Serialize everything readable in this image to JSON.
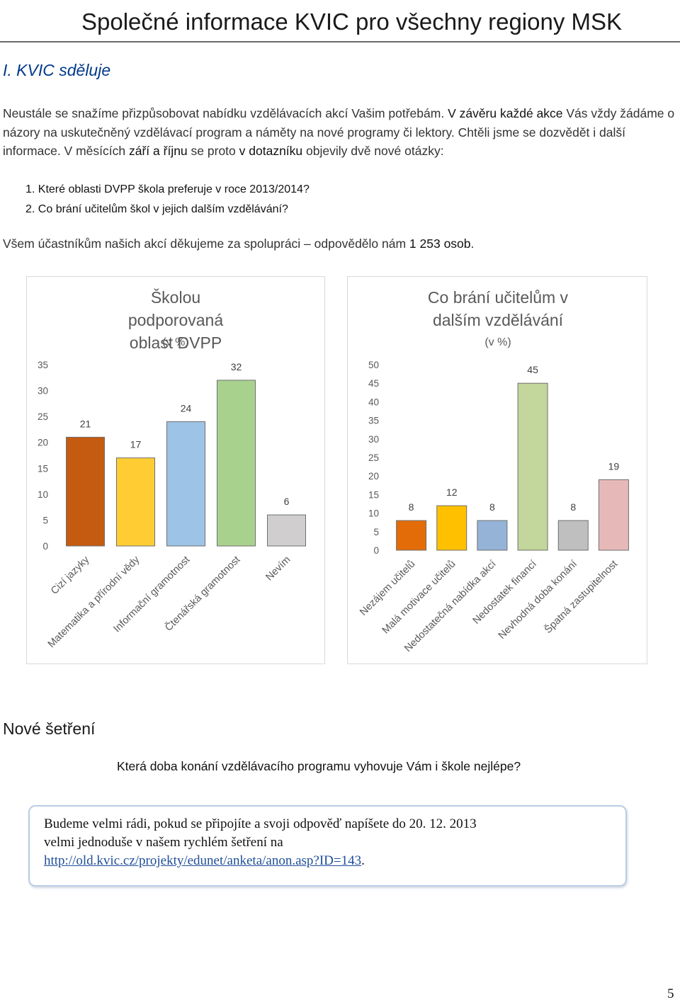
{
  "header": {
    "title": "Společné informace KVIC pro všechny regiony MSK"
  },
  "section": {
    "title": "I. KVIC sděluje"
  },
  "intro": {
    "p1": "Neustále se snažíme přizpůsobovat nabídku vzdělávacích akcí Vašim potřebám. ",
    "p1b": "V závěru každé akce",
    "p2": " Vás vždy žádáme o názory na uskutečněný vzdělávací program a náměty na nové programy či lektory. Chtěli jsme se dozvědět i další informace. V měsících ",
    "p2b": "září a říjnu",
    "p3": " se proto ",
    "p3b": "v dotazníku",
    "p4": " objevily dvě nové otázky:"
  },
  "questions": [
    "1.   Které oblasti DVPP škola preferuje v roce 2013/2014?",
    "2.   Co brání učitelům škol v jejich dalším vzdělávání?"
  ],
  "thanks": {
    "text": "Všem účastníkům našich akcí děkujeme za spolupráci – odpovědělo nám ",
    "bold": "1 253 osob",
    "end": "."
  },
  "chart_data": [
    {
      "type": "bar",
      "title": "Školou podporovaná oblast DVPP",
      "subtitle": "(v %)",
      "categories": [
        "Cizí jazyky",
        "Matematika a přírodní vědy",
        "Informační gramotnost",
        "Čtenářská gramotnost",
        "Nevím"
      ],
      "values": [
        21,
        17,
        24,
        32,
        6
      ],
      "colors": [
        "#c55a11",
        "#ffcc33",
        "#9dc3e6",
        "#a9d18e",
        "#d0cece"
      ],
      "ylim": [
        0,
        35
      ],
      "yticks": [
        0,
        5,
        10,
        15,
        20,
        25,
        30,
        35
      ],
      "grid": false,
      "xlabel": "",
      "ylabel": ""
    },
    {
      "type": "bar",
      "title": "Co brání učitelům v dalším vzdělávání",
      "subtitle": "(v %)",
      "categories": [
        "Nezájem učitelů",
        "Malá motivace učitelů",
        "Nedostatečná nabídka akcí",
        "Nedostatek financí",
        "Nevhodná doba konání",
        "Špatná zastupitelnost"
      ],
      "values": [
        8,
        12,
        8,
        45,
        8,
        19
      ],
      "colors": [
        "#e36c09",
        "#ffc000",
        "#95b3d7",
        "#c3d69b",
        "#bfbfbf",
        "#e6b9b8"
      ],
      "ylim": [
        0,
        50
      ],
      "yticks": [
        0,
        5,
        10,
        15,
        20,
        25,
        30,
        35,
        40,
        45,
        50
      ],
      "grid": false,
      "xlabel": "",
      "ylabel": ""
    }
  ],
  "nove": {
    "title": "Nové šetření"
  },
  "survey": {
    "question": "Která doba konání vzdělávacího programu vyhovuje Vám i škole nejlépe?"
  },
  "callout": {
    "line1": "Budeme velmi rádi, pokud se připojíte a svoji odpověď napíšete do 20. 12. 2013",
    "line2": "velmi jednoduše v našem rychlém šetření na",
    "link": "http://old.kvic.cz/projekty/edunet/anketa/anon.asp?ID=143",
    "end": "."
  },
  "page": {
    "number": "5"
  }
}
